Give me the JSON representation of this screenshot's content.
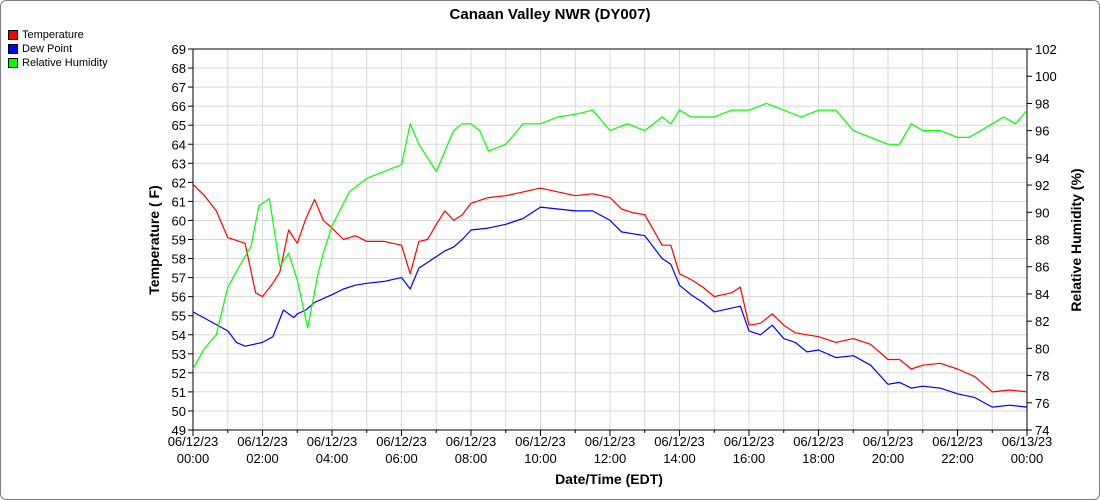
{
  "chart_data": {
    "type": "line",
    "title": "Canaan Valley NWR (DY007)",
    "xlabel": "Date/Time (EDT)",
    "ylabel_left": "Temperature ( F)",
    "ylabel_right": "Relative Humidity (%)",
    "ylim_left": [
      49,
      69
    ],
    "ylim_right": [
      74,
      102
    ],
    "x_unit": "hours since 06/12/23 00:00",
    "xlim": [
      0,
      24
    ],
    "x_tick_labels": [
      {
        "date": "06/12/23",
        "time": "00:00"
      },
      {
        "date": "06/12/23",
        "time": "02:00"
      },
      {
        "date": "06/12/23",
        "time": "04:00"
      },
      {
        "date": "06/12/23",
        "time": "06:00"
      },
      {
        "date": "06/12/23",
        "time": "08:00"
      },
      {
        "date": "06/12/23",
        "time": "10:00"
      },
      {
        "date": "06/12/23",
        "time": "12:00"
      },
      {
        "date": "06/12/23",
        "time": "14:00"
      },
      {
        "date": "06/12/23",
        "time": "16:00"
      },
      {
        "date": "06/12/23",
        "time": "18:00"
      },
      {
        "date": "06/12/23",
        "time": "20:00"
      },
      {
        "date": "06/12/23",
        "time": "22:00"
      },
      {
        "date": "06/13/23",
        "time": "00:00"
      }
    ],
    "y_left_ticks": [
      49,
      50,
      51,
      52,
      53,
      54,
      55,
      56,
      57,
      58,
      59,
      60,
      61,
      62,
      63,
      64,
      65,
      66,
      67,
      68,
      69
    ],
    "y_right_ticks": [
      74,
      76,
      78,
      80,
      82,
      84,
      86,
      88,
      90,
      92,
      94,
      96,
      98,
      100,
      102
    ],
    "grid": true,
    "legend_position": "top-left",
    "series": [
      {
        "name": "Temperature",
        "color": "#ff0000",
        "axis": "left",
        "x": [
          0,
          0.33,
          0.67,
          1,
          1.5,
          1.8,
          2,
          2.3,
          2.5,
          2.75,
          3,
          3.25,
          3.5,
          3.75,
          4,
          4.33,
          4.67,
          5,
          5.5,
          6,
          6.25,
          6.5,
          6.75,
          7,
          7.25,
          7.5,
          7.75,
          8,
          8.5,
          9,
          9.5,
          10,
          10.5,
          11,
          11.5,
          12,
          12.33,
          12.67,
          13,
          13.5,
          13.75,
          14,
          14.33,
          14.67,
          15,
          15.5,
          15.75,
          16,
          16.33,
          16.67,
          17,
          17.33,
          17.67,
          18,
          18.5,
          19,
          19.5,
          20,
          20.33,
          20.67,
          21,
          21.5,
          22,
          22.5,
          23,
          23.5,
          24
        ],
        "y": [
          61.9,
          61.3,
          60.5,
          59.1,
          58.8,
          56.2,
          56.0,
          56.7,
          57.3,
          59.5,
          58.8,
          60.1,
          61.1,
          60.0,
          59.6,
          59.0,
          59.2,
          58.9,
          58.9,
          58.7,
          57.2,
          58.9,
          59.0,
          59.8,
          60.5,
          60.0,
          60.3,
          60.9,
          61.2,
          61.3,
          61.5,
          61.7,
          61.5,
          61.3,
          61.4,
          61.2,
          60.6,
          60.4,
          60.3,
          58.7,
          58.7,
          57.2,
          56.9,
          56.5,
          56.0,
          56.2,
          56.5,
          54.5,
          54.6,
          55.1,
          54.5,
          54.1,
          54.0,
          53.9,
          53.6,
          53.8,
          53.5,
          52.7,
          52.7,
          52.2,
          52.4,
          52.5,
          52.2,
          51.8,
          51.0,
          51.1,
          51.0
        ]
      },
      {
        "name": "Dew Point",
        "color": "#0000ff",
        "axis": "left",
        "x": [
          0,
          0.5,
          1,
          1.25,
          1.5,
          1.75,
          2,
          2.3,
          2.6,
          2.9,
          3,
          3.25,
          3.5,
          3.75,
          4,
          4.33,
          4.67,
          5,
          5.5,
          6,
          6.25,
          6.5,
          6.75,
          7,
          7.25,
          7.5,
          7.75,
          8,
          8.5,
          9,
          9.5,
          10,
          10.5,
          11,
          11.5,
          12,
          12.33,
          12.67,
          13,
          13.5,
          13.75,
          14,
          14.33,
          14.67,
          15,
          15.5,
          15.75,
          16,
          16.33,
          16.67,
          17,
          17.33,
          17.67,
          18,
          18.5,
          19,
          19.5,
          20,
          20.33,
          20.67,
          21,
          21.5,
          22,
          22.5,
          23,
          23.5,
          24
        ],
        "y": [
          55.2,
          54.7,
          54.2,
          53.6,
          53.4,
          53.5,
          53.6,
          53.9,
          55.3,
          54.9,
          55.1,
          55.3,
          55.7,
          55.9,
          56.1,
          56.4,
          56.6,
          56.7,
          56.8,
          57.0,
          56.4,
          57.5,
          57.8,
          58.1,
          58.4,
          58.6,
          59.0,
          59.5,
          59.6,
          59.8,
          60.1,
          60.7,
          60.6,
          60.5,
          60.5,
          60.0,
          59.4,
          59.3,
          59.2,
          58.0,
          57.7,
          56.6,
          56.1,
          55.7,
          55.2,
          55.4,
          55.5,
          54.2,
          54.0,
          54.5,
          53.8,
          53.6,
          53.1,
          53.2,
          52.8,
          52.9,
          52.4,
          51.4,
          51.5,
          51.2,
          51.3,
          51.2,
          50.9,
          50.7,
          50.2,
          50.3,
          50.2
        ]
      },
      {
        "name": "Relative Humidity",
        "color": "#00ff00",
        "axis": "right",
        "x": [
          0,
          0.33,
          0.67,
          1,
          1.33,
          1.67,
          1.9,
          2.2,
          2.5,
          2.75,
          3,
          3.3,
          3.6,
          3.75,
          4,
          4.5,
          5,
          5.5,
          6,
          6.25,
          6.5,
          6.75,
          7,
          7.25,
          7.5,
          7.75,
          8,
          8.25,
          8.5,
          9,
          9.5,
          10,
          10.5,
          11,
          11.5,
          12,
          12.5,
          13,
          13.5,
          13.75,
          14,
          14.33,
          14.67,
          15,
          15.5,
          16,
          16.5,
          17,
          17.5,
          18,
          18.5,
          19,
          19.5,
          20,
          20.33,
          20.67,
          21,
          21.5,
          22,
          22.33,
          22.67,
          23,
          23.33,
          23.67,
          24
        ],
        "y": [
          78.5,
          80.0,
          81.0,
          84.5,
          86.0,
          87.5,
          90.5,
          91.0,
          86.0,
          87.0,
          85.0,
          81.5,
          85.5,
          87.0,
          89.0,
          91.5,
          92.5,
          93.0,
          93.5,
          96.5,
          95.0,
          94.0,
          93.0,
          94.5,
          96.0,
          96.5,
          96.5,
          96.0,
          94.5,
          95.0,
          96.5,
          96.5,
          97.0,
          97.2,
          97.5,
          96.0,
          96.5,
          96.0,
          97.0,
          96.5,
          97.5,
          97.0,
          97.0,
          97.0,
          97.5,
          97.5,
          98.0,
          97.5,
          97.0,
          97.5,
          97.5,
          96.0,
          95.5,
          95.0,
          95.0,
          96.5,
          96.0,
          96.0,
          95.5,
          95.5,
          96.0,
          96.5,
          97.0,
          96.5,
          97.5
        ]
      }
    ]
  }
}
